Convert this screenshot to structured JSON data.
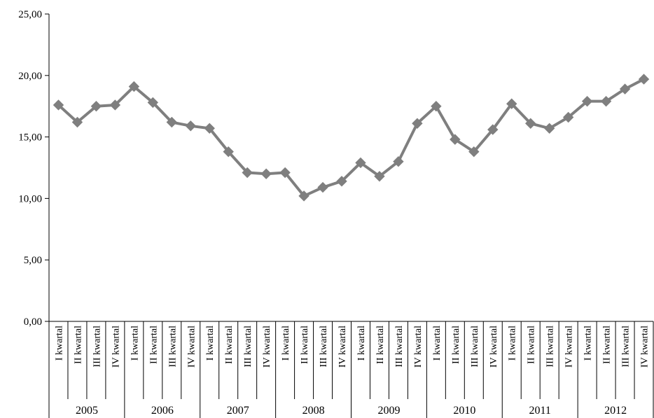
{
  "chart_data": {
    "type": "line",
    "title": "",
    "xlabel": "",
    "ylabel": "",
    "ylim": [
      0,
      25
    ],
    "y_ticks": [
      "0,00",
      "5,00",
      "10,00",
      "15,00",
      "20,00",
      "25,00"
    ],
    "grid": false,
    "legend": "none",
    "years": [
      "2005",
      "2006",
      "2007",
      "2008",
      "2009",
      "2010",
      "2011",
      "2012"
    ],
    "quarters": [
      "I kwartal",
      "II kwartal",
      "III kwartal",
      "IV kwartal"
    ],
    "series": [
      {
        "color": "#7f7f7f",
        "marker": "diamond",
        "values": [
          17.6,
          16.2,
          17.5,
          17.6,
          19.1,
          17.8,
          16.2,
          15.9,
          15.7,
          13.8,
          12.1,
          12.0,
          12.1,
          10.2,
          10.9,
          11.4,
          12.9,
          11.8,
          13.0,
          16.1,
          17.5,
          14.8,
          13.8,
          15.6,
          17.7,
          16.1,
          15.7,
          16.6,
          17.9,
          17.9,
          18.9,
          19.7
        ]
      }
    ]
  }
}
